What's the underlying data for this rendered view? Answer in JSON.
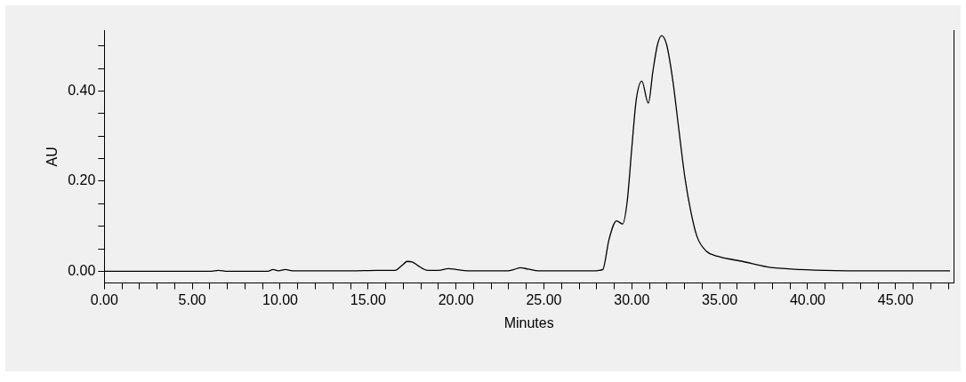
{
  "chart_data": {
    "type": "line",
    "xlabel": "Minutes",
    "ylabel": "AU",
    "x": [
      0,
      2,
      4,
      6,
      6.5,
      7,
      9.3,
      9.6,
      9.9,
      10.3,
      10.7,
      12,
      14,
      15.5,
      16.53,
      16.9,
      17.23,
      17.5,
      17.82,
      18.4,
      19.0,
      19.57,
      20.2,
      20.97,
      22.96,
      23.3,
      23.66,
      24.1,
      24.7,
      26,
      28.0,
      28.1,
      28.35,
      28.7,
      29.13,
      29.48,
      29.74,
      30.0,
      30.25,
      30.57,
      30.94,
      31.2,
      31.46,
      31.69,
      31.98,
      32.33,
      32.68,
      33.02,
      33.37,
      33.71,
      34.23,
      34.92,
      36.3,
      37.69,
      39.08,
      41,
      44,
      48.1
    ],
    "series": [
      {
        "color": "#000000",
        "values": [
          0,
          0,
          0,
          0,
          0.002,
          0,
          0,
          0.004,
          0.001,
          0.004,
          0.001,
          0.001,
          0.001,
          0.002,
          0.002,
          0.012,
          0.022,
          0.021,
          0.013,
          0.002,
          0.002,
          0.006,
          0.003,
          0.001,
          0.001,
          0.004,
          0.008,
          0.005,
          0.001,
          0.001,
          0.001,
          0.002,
          0.004,
          0.07,
          0.112,
          0.105,
          0.156,
          0.274,
          0.38,
          0.422,
          0.373,
          0.444,
          0.503,
          0.523,
          0.503,
          0.424,
          0.313,
          0.208,
          0.13,
          0.077,
          0.045,
          0.033,
          0.022,
          0.01,
          0.005,
          0.002,
          0.001,
          0.001
        ]
      }
    ],
    "xlim": [
      0,
      48.3
    ],
    "ylim": [
      -0.026,
      0.535
    ],
    "xticks": [
      {
        "value": 0,
        "label": "0.00"
      },
      {
        "value": 1,
        "label": null
      },
      {
        "value": 2,
        "label": null
      },
      {
        "value": 3,
        "label": null
      },
      {
        "value": 4,
        "label": null
      },
      {
        "value": 5,
        "label": "5.00"
      },
      {
        "value": 6,
        "label": null
      },
      {
        "value": 7,
        "label": null
      },
      {
        "value": 8,
        "label": null
      },
      {
        "value": 9,
        "label": null
      },
      {
        "value": 10,
        "label": "10.00"
      },
      {
        "value": 11,
        "label": null
      },
      {
        "value": 12,
        "label": null
      },
      {
        "value": 13,
        "label": null
      },
      {
        "value": 14,
        "label": null
      },
      {
        "value": 15,
        "label": "15.00"
      },
      {
        "value": 16,
        "label": null
      },
      {
        "value": 17,
        "label": null
      },
      {
        "value": 18,
        "label": null
      },
      {
        "value": 19,
        "label": null
      },
      {
        "value": 20,
        "label": "20.00"
      },
      {
        "value": 21,
        "label": null
      },
      {
        "value": 22,
        "label": null
      },
      {
        "value": 23,
        "label": null
      },
      {
        "value": 24,
        "label": null
      },
      {
        "value": 25,
        "label": "25.00"
      },
      {
        "value": 26,
        "label": null
      },
      {
        "value": 27,
        "label": null
      },
      {
        "value": 28,
        "label": null
      },
      {
        "value": 29,
        "label": null
      },
      {
        "value": 30,
        "label": "30.00"
      },
      {
        "value": 31,
        "label": null
      },
      {
        "value": 32,
        "label": null
      },
      {
        "value": 33,
        "label": null
      },
      {
        "value": 34,
        "label": null
      },
      {
        "value": 35,
        "label": "35.00"
      },
      {
        "value": 36,
        "label": null
      },
      {
        "value": 37,
        "label": null
      },
      {
        "value": 38,
        "label": null
      },
      {
        "value": 39,
        "label": null
      },
      {
        "value": 40,
        "label": "40.00"
      },
      {
        "value": 41,
        "label": null
      },
      {
        "value": 42,
        "label": null
      },
      {
        "value": 43,
        "label": null
      },
      {
        "value": 44,
        "label": null
      },
      {
        "value": 45,
        "label": "45.00"
      },
      {
        "value": 46,
        "label": null
      },
      {
        "value": 47,
        "label": null
      },
      {
        "value": 48,
        "label": null
      }
    ],
    "yticks": [
      {
        "value": 0,
        "label": "0.00"
      },
      {
        "value": 0.05,
        "label": null
      },
      {
        "value": 0.1,
        "label": null
      },
      {
        "value": 0.15,
        "label": null
      },
      {
        "value": 0.2,
        "label": "0.20"
      },
      {
        "value": 0.25,
        "label": null
      },
      {
        "value": 0.3,
        "label": null
      },
      {
        "value": 0.35,
        "label": null
      },
      {
        "value": 0.4,
        "label": "0.40"
      },
      {
        "value": 0.45,
        "label": null
      },
      {
        "value": 0.5,
        "label": null
      }
    ],
    "grid": false,
    "legend": false,
    "marker": "none",
    "line_style": "solid"
  }
}
